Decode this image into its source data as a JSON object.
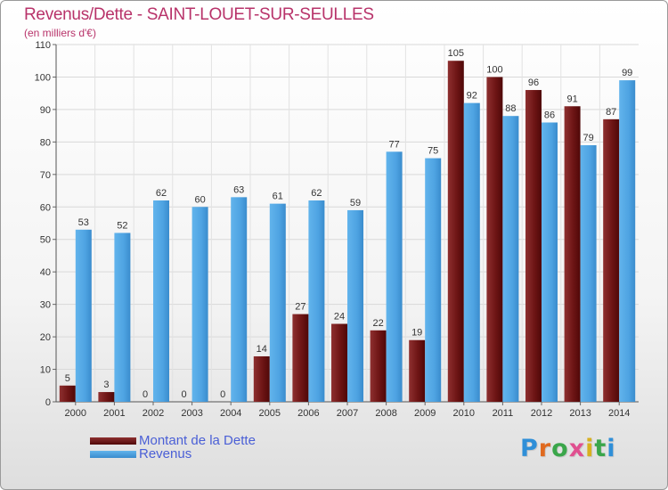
{
  "chart_data": {
    "type": "bar",
    "title": "Revenus/Dette - SAINT-LOUET-SUR-SEULLES",
    "subtitle": "(en milliers d'€)",
    "categories": [
      "2000",
      "2001",
      "2002",
      "2003",
      "2004",
      "2005",
      "2006",
      "2007",
      "2008",
      "2009",
      "2010",
      "2011",
      "2012",
      "2013",
      "2014"
    ],
    "series": [
      {
        "name": "Montant de la Dette",
        "color": "#7a1b1b",
        "values": [
          5,
          3,
          0,
          0,
          0,
          14,
          27,
          24,
          22,
          19,
          105,
          100,
          96,
          91,
          87
        ]
      },
      {
        "name": "Revenus",
        "color": "#4ea3e2",
        "values": [
          53,
          52,
          62,
          60,
          63,
          61,
          62,
          59,
          77,
          75,
          92,
          88,
          86,
          79,
          99
        ]
      }
    ],
    "ylim": [
      0,
      110
    ],
    "yticks": [
      0,
      10,
      20,
      30,
      40,
      50,
      60,
      70,
      80,
      90,
      100,
      110
    ],
    "grid": true,
    "legend_position": "bottom-left",
    "show_data_labels": true
  },
  "branding": {
    "logo_letters": [
      "P",
      "r",
      "o",
      "x",
      "i",
      "t",
      "i"
    ],
    "logo_colors": [
      "#2f8fd8",
      "#e06a1f",
      "#3aa64a",
      "#e05090",
      "#d8b020",
      "#3aa64a",
      "#2f8fd8"
    ]
  }
}
